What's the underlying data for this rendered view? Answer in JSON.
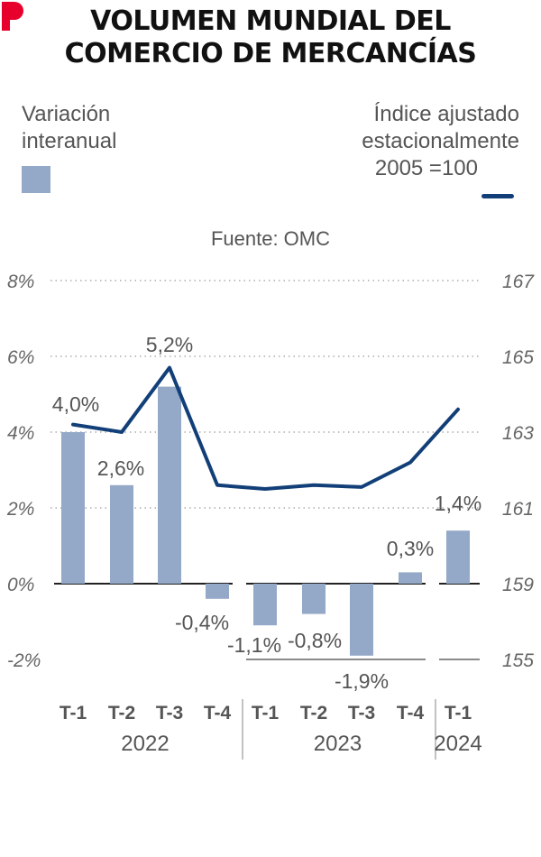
{
  "title": {
    "line1": "VOLUMEN MUNDIAL DEL",
    "line2": "COMERCIO DE MERCANCÍAS"
  },
  "legend": {
    "bars": {
      "line1": "Variación",
      "line2": "interanual"
    },
    "line": {
      "line1": "Índice ajustado",
      "line2": "estacionalmente",
      "line3": "2005 =100"
    }
  },
  "source": "Fuente: OMC",
  "colors": {
    "bar": "#94a9c7",
    "line": "#123f78",
    "text": "#555555",
    "logo": "#e8002d"
  },
  "chart_data": {
    "type": "bar+line",
    "categories": [
      "T-1",
      "T-2",
      "T-3",
      "T-4",
      "T-1",
      "T-2",
      "T-3",
      "T-4",
      "T-1"
    ],
    "years": [
      {
        "label": "2022",
        "start": 0,
        "end": 3
      },
      {
        "label": "2023",
        "start": 4,
        "end": 7
      },
      {
        "label": "2024",
        "start": 8,
        "end": 8
      }
    ],
    "series": [
      {
        "name": "Variación interanual",
        "type": "bar",
        "axis": "left",
        "values": [
          4.0,
          2.6,
          5.2,
          -0.4,
          -1.1,
          -0.8,
          -1.9,
          0.3,
          1.4
        ],
        "labels": [
          "4,0%",
          "2,6%",
          "5,2%",
          "-0,4%",
          "-1,1%",
          "-0,8%",
          "-1,9%",
          "0,3%",
          "1,4%"
        ]
      },
      {
        "name": "Índice ajustado estacionalmente 2005 =100",
        "type": "line",
        "axis": "right",
        "values": [
          163.2,
          163.0,
          164.7,
          161.6,
          161.5,
          161.6,
          161.55,
          162.2,
          163.6
        ]
      }
    ],
    "y_left": {
      "min": -2,
      "max": 8,
      "ticks": [
        8,
        6,
        4,
        2,
        0,
        -2
      ],
      "tick_labels": [
        "8%",
        "6%",
        "4%",
        "2%",
        "0%",
        "-2%"
      ]
    },
    "y_right": {
      "min": 155,
      "max": 167,
      "ticks": [
        167,
        165,
        163,
        161,
        159,
        155
      ],
      "tick_labels": [
        "167",
        "165",
        "163",
        "161",
        "159",
        "155"
      ]
    }
  }
}
